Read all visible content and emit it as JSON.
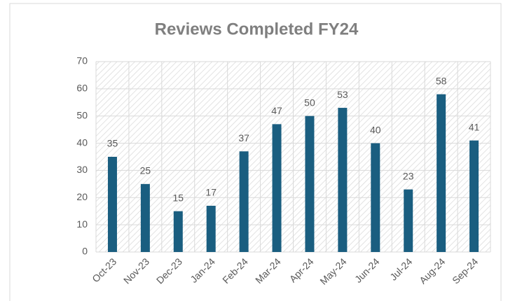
{
  "chart_data": {
    "type": "bar",
    "title": "Reviews Completed FY24",
    "categories": [
      "Oct-23",
      "Nov-23",
      "Dec-23",
      "Jan-24",
      "Feb-24",
      "Mar-24",
      "Apr-24",
      "May-24",
      "Jun-24",
      "Jul-24",
      "Aug-24",
      "Sep-24"
    ],
    "values": [
      35,
      25,
      15,
      17,
      37,
      47,
      50,
      53,
      40,
      23,
      58,
      41
    ],
    "color": "#1a5e80",
    "ylim": [
      0,
      70
    ],
    "yticks": [
      0,
      10,
      20,
      30,
      40,
      50,
      60,
      70
    ],
    "grid": true
  }
}
